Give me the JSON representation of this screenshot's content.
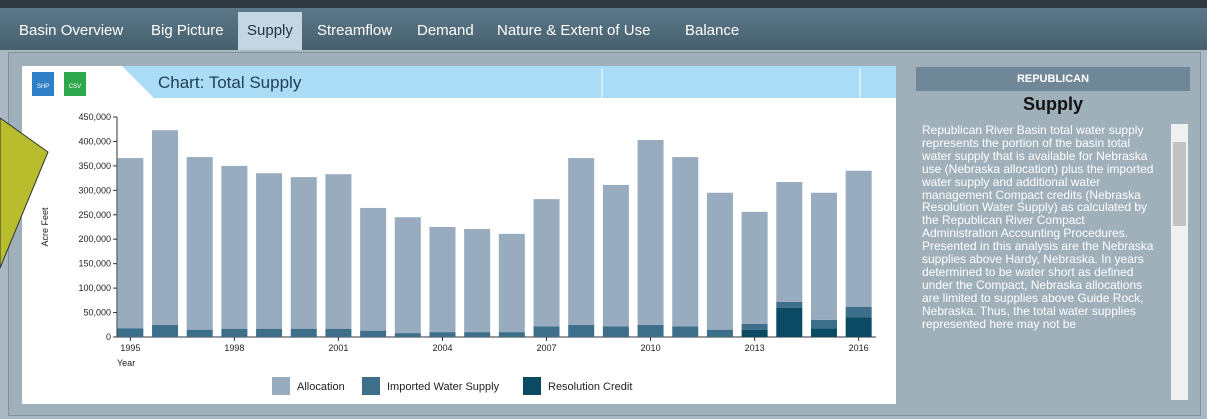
{
  "tabs": [
    "Basin Overview",
    "Big Picture",
    "Supply",
    "Streamflow",
    "Demand",
    "Nature & Extent of Use",
    "Balance"
  ],
  "active_tab": 2,
  "buttons": [
    "SHP",
    "CSV"
  ],
  "chart_header": "Chart: Total Supply",
  "chart_data": {
    "type": "stacked_bar",
    "y_label": "Acre Feet",
    "x_label": "Year",
    "categories": [
      "1995",
      null,
      null,
      "1998",
      null,
      null,
      "2001",
      null,
      null,
      "2004",
      null,
      null,
      "2007",
      null,
      null,
      "2010",
      null,
      null,
      "2013",
      null,
      null,
      "2016"
    ],
    "series": [
      {
        "name": "Resolution Credit",
        "color": "#0b4a63",
        "values": [
          0,
          0,
          0,
          0,
          0,
          0,
          0,
          0,
          0,
          0,
          0,
          0,
          0,
          0,
          0,
          0,
          0,
          0,
          15000,
          60000,
          18000,
          40000
        ]
      },
      {
        "name": "Imported Water Supply",
        "color": "#3d6f8b",
        "values": [
          18000,
          25000,
          15000,
          17000,
          17000,
          17000,
          17000,
          13000,
          8000,
          10000,
          10000,
          10000,
          22000,
          25000,
          22000,
          25000,
          22000,
          15000,
          12000,
          12000,
          17000,
          22000
        ]
      },
      {
        "name": "Allocation",
        "color": "#98abbf",
        "values": [
          348000,
          398000,
          353000,
          333000,
          318000,
          310000,
          316000,
          251000,
          237000,
          215000,
          211000,
          201000,
          260000,
          341000,
          289000,
          378000,
          346000,
          280000,
          229000,
          245000,
          260000,
          278000
        ]
      }
    ],
    "legend_order": [
      2,
      1,
      0
    ],
    "ylim": [
      0,
      450000
    ],
    "yticks": [
      0,
      {
        "value": 50000,
        "label": "50,000"
      },
      {
        "value": 100000,
        "label": "100,000"
      },
      {
        "value": 150000,
        "label": "150,000"
      },
      {
        "value": 200000,
        "label": "200,000"
      },
      {
        "value": 250000,
        "label": "250,000"
      },
      {
        "value": 300000,
        "label": "300,000"
      },
      {
        "value": 350000,
        "label": "350,000"
      },
      {
        "value": 400000,
        "label": "400,000"
      },
      {
        "value": 450000,
        "label": "450,000"
      }
    ]
  },
  "sidebar": {
    "basin": "REPUBLICAN",
    "title": "Supply",
    "text": "Republican River Basin total water supply represents the portion of the basin total water supply that is available for Nebraska use (Nebraska allocation) plus the imported water supply and additional water management Compact credits (Nebraska Resolution Water Supply) as calculated by the Republican River Compact Administration Accounting Procedures. Presented in this analysis are the Nebraska supplies above Hardy, Nebraska. In years determined to be water short as defined under the Compact, Nebraska allocations are limited to supplies above Guide Rock, Nebraska. Thus, the total water supplies represented here may not be"
  }
}
